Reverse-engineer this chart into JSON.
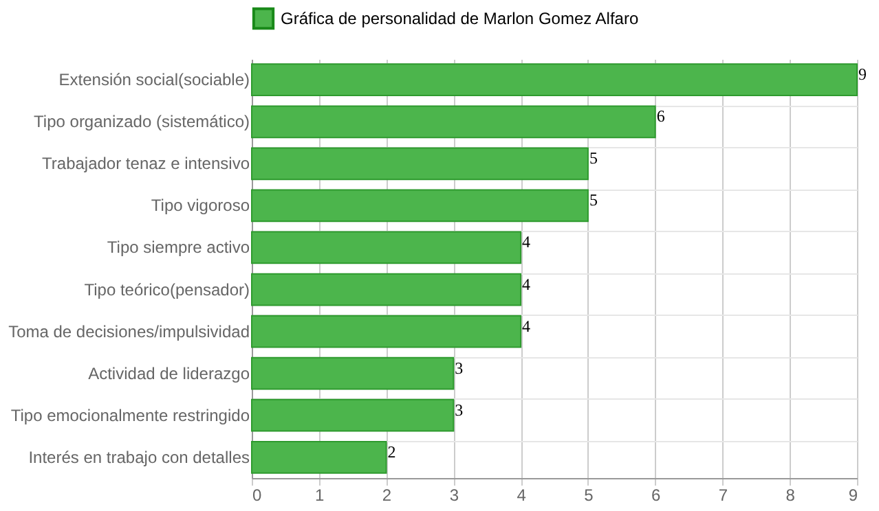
{
  "chart_data": {
    "type": "bar",
    "orientation": "horizontal",
    "categories": [
      "Extensión social(sociable)",
      "Tipo organizado (sistemático)",
      "Trabajador tenaz e intensivo",
      "Tipo vigoroso",
      "Tipo siempre activo",
      "Tipo teórico(pensador)",
      "Toma de decisiones/impulsividad",
      "Actividad de liderazgo",
      "Tipo emocionalmente restringido",
      "Interés en trabajo con detalles"
    ],
    "series": [
      {
        "name": "Gráfica de personalidad de Marlon Gomez Alfaro",
        "color": "#4cb54c",
        "values": [
          9,
          6,
          5,
          5,
          4,
          4,
          4,
          3,
          3,
          2
        ]
      }
    ],
    "xlim": [
      0,
      9
    ],
    "xticks": [
      0,
      1,
      2,
      3,
      4,
      5,
      6,
      7,
      8,
      9
    ],
    "grid": true,
    "legend": "top",
    "data_labels": true
  }
}
